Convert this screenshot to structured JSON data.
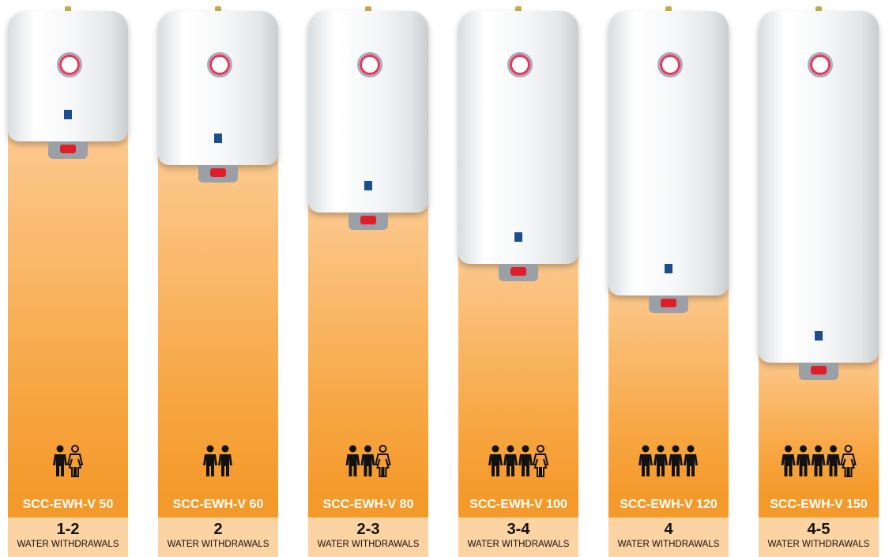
{
  "products": [
    {
      "model": "SCC-EWH-V 50",
      "withdrawals": "1-2",
      "unit": "WATER WITHDRAWALS"
    },
    {
      "model": "SCC-EWH-V 60",
      "withdrawals": "2",
      "unit": "WATER WITHDRAWALS"
    },
    {
      "model": "SCC-EWH-V 80",
      "withdrawals": "2-3",
      "unit": "WATER WITHDRAWALS"
    },
    {
      "model": "SCC-EWH-V 100",
      "withdrawals": "3-4",
      "unit": "WATER WITHDRAWALS"
    },
    {
      "model": "SCC-EWH-V 120",
      "withdrawals": "4",
      "unit": "WATER WITHDRAWALS"
    },
    {
      "model": "SCC-EWH-V 150",
      "withdrawals": "4-5",
      "unit": "WATER WITHDRAWALS"
    }
  ]
}
